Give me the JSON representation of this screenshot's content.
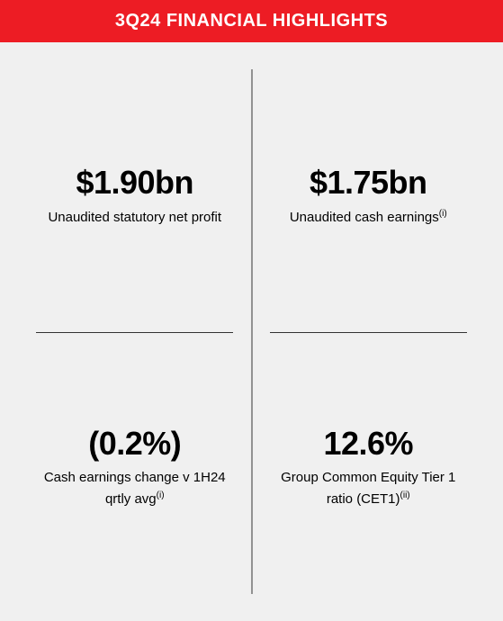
{
  "header": {
    "title": "3Q24 FINANCIAL HIGHLIGHTS",
    "background_color": "#ed1c24",
    "text_color": "#ffffff",
    "font_size": 20,
    "font_weight": "bold"
  },
  "layout": {
    "type": "infographic",
    "grid": "2x2",
    "background_color": "#f0f0f0",
    "divider_color": "#333333"
  },
  "metrics": [
    {
      "value": "$1.90bn",
      "label": "Unaudited statutory net profit",
      "footnote": ""
    },
    {
      "value": "$1.75bn",
      "label": "Unaudited cash earnings",
      "footnote": "(i)"
    },
    {
      "value": "(0.2%)",
      "label": "Cash earnings change v 1H24 qrtly avg",
      "footnote": "(i)"
    },
    {
      "value": "12.6%",
      "label": "Group Common Equity Tier 1 ratio (CET1)",
      "footnote": "(ii)"
    }
  ],
  "typography": {
    "value_font_size": 36,
    "value_font_weight": 900,
    "value_color": "#000000",
    "label_font_size": 15,
    "label_color": "#000000",
    "footnote_font_size": 10
  }
}
